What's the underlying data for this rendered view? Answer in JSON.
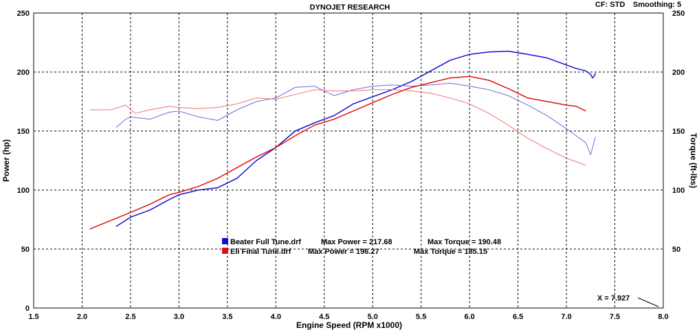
{
  "header": {
    "title": "DYNOJET RESEARCH",
    "cf_label": "CF: STD",
    "smoothing_label": "Smoothing: 5"
  },
  "cursor": {
    "label": "X = 7.927"
  },
  "colors": {
    "run_a": "#1010d0",
    "run_b": "#e01010",
    "grid": "#000000"
  },
  "chart_data": {
    "type": "line",
    "title": "DYNOJET RESEARCH",
    "xlabel": "Engine Speed (RPM x1000)",
    "ylabel": "Power (hp)",
    "y2label": "Torque (ft-lbs)",
    "xlim": [
      1.5,
      8.0
    ],
    "ylim": [
      0,
      250
    ],
    "y2lim": [
      0,
      250
    ],
    "xticks": [
      "1.5",
      "2.0",
      "2.5",
      "3.0",
      "3.5",
      "4.0",
      "4.5",
      "5.0",
      "5.5",
      "6.0",
      "6.5",
      "7.0",
      "7.5",
      "8.0"
    ],
    "yticks": [
      "0",
      "50",
      "100",
      "150",
      "200",
      "250"
    ],
    "y2ticks": [
      "50",
      "100",
      "150",
      "200",
      "250"
    ],
    "grid": true,
    "legend": [
      {
        "file": "Beater Full Tune.drf",
        "max_power_label": "Max Power = 217.68",
        "max_torque_label": "Max Torque = 190.48",
        "color": "#1010d0"
      },
      {
        "file": "Eli Final Tune.drf",
        "max_power_label": "Max Power = 196.27",
        "max_torque_label": "Max Torque = 185.15",
        "color": "#e01010"
      }
    ],
    "series": [
      {
        "name": "Beater Full Tune.drf",
        "measure": "power",
        "color": "#1010d0",
        "width": 1.5,
        "x": [
          2.35,
          2.5,
          2.7,
          2.9,
          3.0,
          3.2,
          3.4,
          3.6,
          3.8,
          4.0,
          4.2,
          4.4,
          4.6,
          4.8,
          5.0,
          5.2,
          5.4,
          5.6,
          5.8,
          6.0,
          6.2,
          6.4,
          6.6,
          6.8,
          7.0,
          7.1,
          7.2,
          7.25,
          7.27,
          7.29,
          7.3
        ],
        "y": [
          69,
          77,
          83,
          92,
          96,
          100,
          102,
          110,
          125,
          136,
          150,
          157,
          163,
          173,
          179,
          185,
          192,
          201,
          210,
          215,
          217,
          217.7,
          215,
          212,
          206,
          203,
          201,
          198,
          195,
          197,
          199
        ]
      },
      {
        "name": "Beater Full Tune.drf",
        "measure": "torque",
        "color": "#6a6ae0",
        "width": 1,
        "x": [
          2.35,
          2.45,
          2.5,
          2.7,
          2.9,
          3.0,
          3.2,
          3.4,
          3.6,
          3.8,
          4.0,
          4.2,
          4.4,
          4.6,
          4.8,
          5.0,
          5.2,
          5.4,
          5.6,
          5.8,
          6.0,
          6.2,
          6.4,
          6.6,
          6.8,
          7.0,
          7.1,
          7.2,
          7.25,
          7.3
        ],
        "y": [
          153,
          160,
          162,
          160,
          166,
          167,
          162,
          159,
          168,
          175,
          178,
          187,
          188,
          180,
          185,
          188,
          189,
          188,
          189,
          190.5,
          188,
          185,
          180,
          172,
          163,
          152,
          146,
          140,
          130,
          145
        ]
      },
      {
        "name": "Eli Final Tune.drf",
        "measure": "power",
        "color": "#e01010",
        "width": 1.5,
        "x": [
          2.08,
          2.2,
          2.35,
          2.5,
          2.7,
          2.9,
          3.0,
          3.2,
          3.4,
          3.6,
          3.8,
          4.0,
          4.2,
          4.4,
          4.6,
          4.8,
          5.0,
          5.2,
          5.4,
          5.6,
          5.8,
          6.0,
          6.2,
          6.4,
          6.6,
          6.8,
          7.0,
          7.1,
          7.2
        ],
        "y": [
          67,
          71,
          76,
          81,
          88,
          96,
          98,
          103,
          110,
          119,
          128,
          136,
          146,
          155,
          160,
          167,
          174,
          181,
          187,
          191,
          195,
          196.3,
          193,
          186,
          178,
          175,
          172,
          171,
          167
        ]
      },
      {
        "name": "Eli Final Tune.drf",
        "measure": "torque",
        "color": "#f07070",
        "width": 1,
        "x": [
          2.08,
          2.3,
          2.45,
          2.55,
          2.7,
          2.9,
          3.0,
          3.2,
          3.4,
          3.6,
          3.8,
          4.0,
          4.2,
          4.4,
          4.6,
          4.8,
          5.0,
          5.2,
          5.4,
          5.6,
          5.8,
          6.0,
          6.2,
          6.4,
          6.6,
          6.8,
          7.0,
          7.1,
          7.2
        ],
        "y": [
          168,
          168,
          172,
          165,
          168,
          171,
          170,
          169,
          170,
          173,
          178,
          177,
          181,
          185,
          184,
          184,
          185,
          185.2,
          184,
          182,
          178,
          173,
          165,
          155,
          144,
          135,
          127,
          124,
          121
        ]
      }
    ]
  }
}
